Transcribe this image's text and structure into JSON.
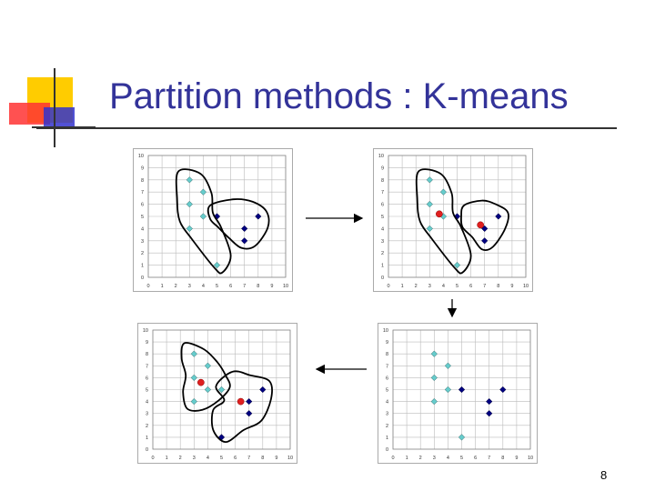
{
  "slide": {
    "title": "Partition methods : K-means",
    "page_number": "8"
  },
  "colors": {
    "title": "#333399",
    "cluster_a_point": "#66cccc",
    "cluster_b_point": "#000080",
    "centroid": "#e02020",
    "grid": "#bbbbbb",
    "logo_yellow": "#ffcc00",
    "logo_red": "#ff3333",
    "logo_blue": "#3333cc"
  },
  "chart_data": [
    {
      "type": "scatter",
      "xlim": [
        0,
        10
      ],
      "ylim": [
        0,
        10
      ],
      "x_ticks": [
        "0",
        "1",
        "2",
        "3",
        "4",
        "5",
        "6",
        "7",
        "8",
        "9",
        "10"
      ],
      "y_ticks": [
        "0",
        "1",
        "2",
        "3",
        "4",
        "5",
        "6",
        "7",
        "8",
        "9",
        "10"
      ],
      "grid": true,
      "series": [
        {
          "points": [
            [
              3,
              8
            ],
            [
              4,
              7
            ],
            [
              3,
              6
            ],
            [
              4,
              5
            ],
            [
              3,
              4
            ],
            [
              5,
              1
            ]
          ]
        },
        {
          "points": [
            [
              5,
              5
            ],
            [
              7,
              4
            ],
            [
              8,
              5
            ],
            [
              7,
              3
            ]
          ]
        }
      ],
      "centroids": []
    },
    {
      "type": "scatter",
      "xlim": [
        0,
        10
      ],
      "ylim": [
        0,
        10
      ],
      "x_ticks": [
        "0",
        "1",
        "2",
        "3",
        "4",
        "5",
        "6",
        "7",
        "8",
        "9",
        "10"
      ],
      "y_ticks": [
        "0",
        "1",
        "2",
        "3",
        "4",
        "5",
        "6",
        "7",
        "8",
        "9",
        "10"
      ],
      "grid": true,
      "series": [
        {
          "points": [
            [
              3,
              8
            ],
            [
              4,
              7
            ],
            [
              3,
              6
            ],
            [
              4,
              5
            ],
            [
              3,
              4
            ],
            [
              5,
              1
            ]
          ]
        },
        {
          "points": [
            [
              5,
              5
            ],
            [
              7,
              4
            ],
            [
              8,
              5
            ],
            [
              7,
              3
            ]
          ]
        }
      ],
      "centroids": [
        [
          3.7,
          5.2
        ],
        [
          6.7,
          4.3
        ]
      ]
    },
    {
      "type": "scatter",
      "xlim": [
        0,
        10
      ],
      "ylim": [
        0,
        10
      ],
      "x_ticks": [
        "0",
        "1",
        "2",
        "3",
        "4",
        "5",
        "6",
        "7",
        "8",
        "9",
        "10"
      ],
      "y_ticks": [
        "0",
        "1",
        "2",
        "3",
        "4",
        "5",
        "6",
        "7",
        "8",
        "9",
        "10"
      ],
      "grid": true,
      "series": [
        {
          "points": [
            [
              3,
              8
            ],
            [
              4,
              7
            ],
            [
              3,
              6
            ],
            [
              4,
              5
            ],
            [
              3,
              4
            ],
            [
              5,
              1
            ]
          ]
        },
        {
          "points": [
            [
              5,
              5
            ],
            [
              7,
              4
            ],
            [
              8,
              5
            ],
            [
              7,
              3
            ]
          ]
        }
      ],
      "centroids": []
    },
    {
      "type": "scatter",
      "xlim": [
        0,
        10
      ],
      "ylim": [
        0,
        10
      ],
      "x_ticks": [
        "0",
        "1",
        "2",
        "3",
        "4",
        "5",
        "6",
        "7",
        "8",
        "9",
        "10"
      ],
      "y_ticks": [
        "0",
        "1",
        "2",
        "3",
        "4",
        "5",
        "6",
        "7",
        "8",
        "9",
        "10"
      ],
      "grid": true,
      "series": [
        {
          "points": [
            [
              3,
              8
            ],
            [
              4,
              7
            ],
            [
              3,
              6
            ],
            [
              4,
              5
            ],
            [
              5,
              5
            ],
            [
              3,
              4
            ]
          ]
        },
        {
          "points": [
            [
              7,
              4
            ],
            [
              8,
              5
            ],
            [
              7,
              3
            ],
            [
              5,
              1
            ]
          ]
        }
      ],
      "centroids": [
        [
          3.5,
          5.6
        ],
        [
          6.4,
          4.0
        ]
      ]
    }
  ]
}
